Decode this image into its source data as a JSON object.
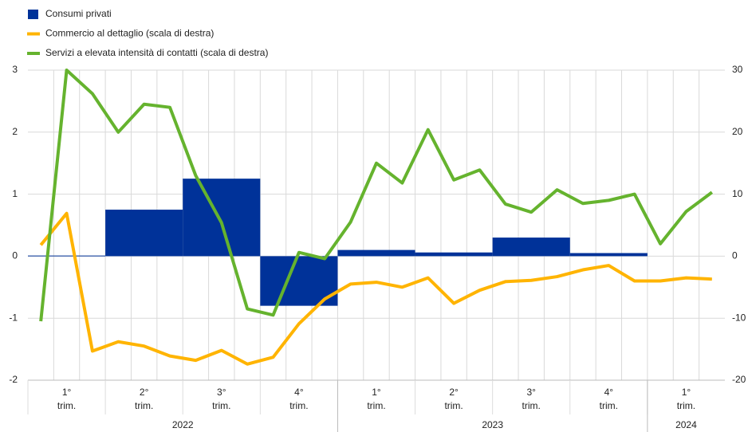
{
  "chart_data": {
    "type": "bar-line",
    "quarters": [
      {
        "n": "1°",
        "unit": "trim."
      },
      {
        "n": "2°",
        "unit": "trim."
      },
      {
        "n": "3°",
        "unit": "trim."
      },
      {
        "n": "4°",
        "unit": "trim."
      },
      {
        "n": "1°",
        "unit": "trim."
      },
      {
        "n": "2°",
        "unit": "trim."
      },
      {
        "n": "3°",
        "unit": "trim."
      },
      {
        "n": "4°",
        "unit": "trim."
      },
      {
        "n": "1°",
        "unit": "trim."
      }
    ],
    "years": [
      "2022",
      "2023",
      "2024"
    ],
    "ylim": [
      -2,
      3
    ],
    "yticks": [
      -2,
      -1,
      0,
      1,
      2,
      3
    ],
    "y2lim": [
      -20,
      30
    ],
    "y2ticks": [
      -20,
      -10,
      0,
      10,
      20,
      30
    ],
    "grid": true,
    "series": [
      {
        "name": "Consumi privati",
        "color": "#003299",
        "kind": "bar",
        "values": [
          0.01,
          0.75,
          1.25,
          -0.8,
          0.1,
          0.06,
          0.3,
          0.05,
          null
        ]
      },
      {
        "name": "Commercio al dettaglio (scala di destra)",
        "color": "#ffb400",
        "kind": "line",
        "axis": "y2",
        "values": [
          1.8,
          6.9,
          -15.3,
          -13.8,
          -14.5,
          -16.1,
          -16.8,
          -15.2,
          -17.4,
          -16.3,
          -10.9,
          -6.9,
          -4.5,
          -4.2,
          -5,
          -3.5,
          -7.6,
          -5.5,
          -4.1,
          -3.9,
          -3.3,
          -2.2,
          -1.5,
          -4,
          -4,
          -3.5,
          -3.7
        ]
      },
      {
        "name": "Servizi a elevata intensità di contatti (scala di destra)",
        "color": "#65b32e",
        "kind": "line",
        "axis": "y2",
        "values": [
          -10.5,
          30,
          26.2,
          20,
          24.5,
          24,
          13,
          5.4,
          -8.5,
          -9.5,
          0.6,
          -0.4,
          5.5,
          15,
          11.8,
          20.4,
          12.3,
          13.9,
          8.4,
          7.1,
          10.7,
          8.5,
          9,
          10,
          2,
          7.2,
          10.3
        ]
      }
    ]
  }
}
